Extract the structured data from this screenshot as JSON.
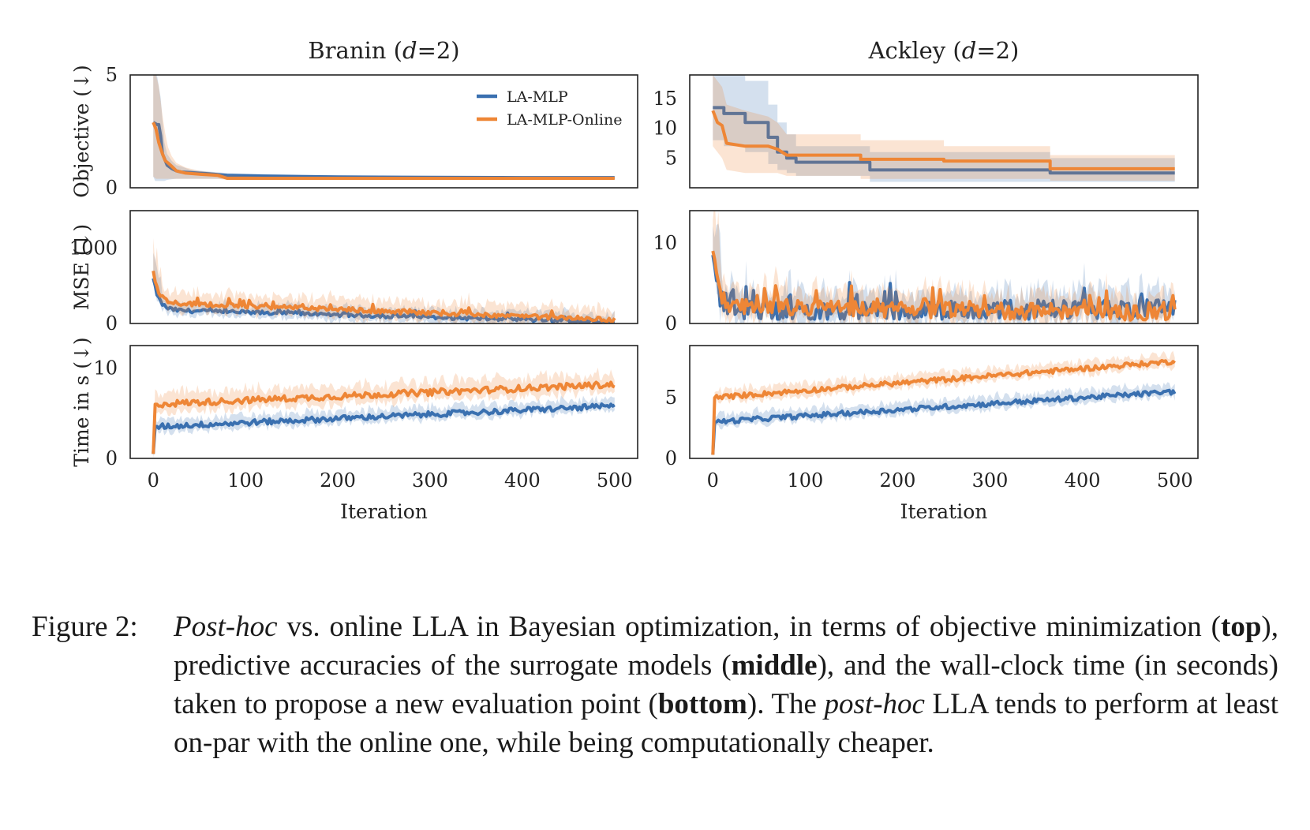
{
  "chart_data": {
    "type": "line",
    "legend": {
      "location": "top-right of first panel",
      "entries": [
        "LA-MLP",
        "LA-MLP-Online"
      ]
    },
    "series_colors": {
      "LA-MLP": "#3a70b0",
      "LA-MLP-Online": "#ee8636"
    },
    "xlabel": "Iteration",
    "xlim": [
      -25,
      525
    ],
    "xticks": [
      "0",
      "100",
      "200",
      "300",
      "400",
      "500"
    ],
    "rows": [
      {
        "ylabel": "Objective (↓)"
      },
      {
        "ylabel": "MSE (↓)"
      },
      {
        "ylabel": "Time in s (↓)"
      }
    ],
    "columns": [
      {
        "title": "Branin (d=2)",
        "title_name": "Branin",
        "title_var": "d",
        "title_eq": "=",
        "title_val": "2"
      },
      {
        "title": "Ackley (d=2)",
        "title_name": "Ackley",
        "title_var": "d",
        "title_eq": "=",
        "title_val": "2"
      }
    ],
    "panels": [
      {
        "id": "branin-objective",
        "row": 0,
        "col": 0,
        "ylim": [
          0,
          5
        ],
        "yticks": [
          "0",
          "5"
        ],
        "series": [
          {
            "name": "LA-MLP",
            "points": [
              [
                0,
                2.9
              ],
              [
                2,
                2.85
              ],
              [
                4,
                2.8
              ],
              [
                6,
                2.8
              ],
              [
                8,
                2.3
              ],
              [
                10,
                1.5
              ],
              [
                12,
                1.3
              ],
              [
                15,
                1.0
              ],
              [
                20,
                0.85
              ],
              [
                25,
                0.75
              ],
              [
                30,
                0.7
              ],
              [
                40,
                0.68
              ],
              [
                60,
                0.62
              ],
              [
                80,
                0.55
              ],
              [
                120,
                0.52
              ],
              [
                200,
                0.48
              ],
              [
                300,
                0.46
              ],
              [
                400,
                0.45
              ],
              [
                500,
                0.45
              ]
            ],
            "band_upper": [
              5.0,
              5.0,
              5.0,
              4.5,
              4.0,
              3.0,
              2.0,
              1.5,
              1.2,
              1.0,
              0.95,
              0.8,
              0.72,
              0.65,
              0.6,
              0.55,
              0.52,
              0.5,
              0.5
            ],
            "band_lower": [
              0.5,
              0.3,
              0.3,
              0.3,
              0.3,
              0.3,
              0.3,
              0.35,
              0.38,
              0.4,
              0.4,
              0.4,
              0.4,
              0.4,
              0.4,
              0.4,
              0.4,
              0.4,
              0.4
            ]
          },
          {
            "name": "LA-MLP-Online",
            "points": [
              [
                0,
                2.9
              ],
              [
                3,
                2.6
              ],
              [
                6,
                2.0
              ],
              [
                10,
                1.5
              ],
              [
                13,
                1.2
              ],
              [
                16,
                1.1
              ],
              [
                20,
                0.95
              ],
              [
                25,
                0.75
              ],
              [
                35,
                0.65
              ],
              [
                50,
                0.6
              ],
              [
                70,
                0.55
              ],
              [
                80,
                0.42
              ],
              [
                120,
                0.42
              ],
              [
                200,
                0.42
              ],
              [
                300,
                0.42
              ],
              [
                400,
                0.42
              ],
              [
                500,
                0.42
              ]
            ],
            "band_upper": [
              5.0,
              5.0,
              4.5,
              3.2,
              2.4,
              1.8,
              1.4,
              1.1,
              0.9,
              0.75,
              0.65,
              0.55,
              0.5,
              0.5,
              0.5,
              0.5,
              0.5
            ],
            "band_lower": [
              0.5,
              0.4,
              0.4,
              0.4,
              0.4,
              0.4,
              0.4,
              0.4,
              0.4,
              0.4,
              0.4,
              0.35,
              0.35,
              0.35,
              0.35,
              0.35,
              0.35
            ]
          }
        ]
      },
      {
        "id": "ackley-objective",
        "row": 0,
        "col": 1,
        "ylim": [
          0,
          19
        ],
        "yticks": [
          "5",
          "10",
          "15"
        ],
        "series": [
          {
            "name": "LA-MLP",
            "points": [
              [
                0,
                13.5
              ],
              [
                12,
                13.5
              ],
              [
                12,
                12.5
              ],
              [
                35,
                12.5
              ],
              [
                35,
                11.0
              ],
              [
                60,
                11.0
              ],
              [
                60,
                8.5
              ],
              [
                70,
                8.5
              ],
              [
                70,
                6.0
              ],
              [
                80,
                6.0
              ],
              [
                80,
                5.0
              ],
              [
                90,
                5.0
              ],
              [
                90,
                4.3
              ],
              [
                170,
                4.3
              ],
              [
                170,
                3.0
              ],
              [
                365,
                3.0
              ],
              [
                365,
                2.5
              ],
              [
                500,
                2.5
              ]
            ],
            "band_upper": [
              19,
              19,
              19,
              19,
              18,
              18,
              14,
              14,
              11,
              11,
              9,
              9,
              7,
              7,
              6,
              6,
              5,
              5
            ],
            "band_lower": [
              8,
              8,
              7,
              7,
              6,
              6,
              4,
              4,
              3,
              3,
              2.5,
              2.5,
              2,
              2,
              1,
              1,
              1,
              1
            ]
          },
          {
            "name": "LA-MLP-Online",
            "points": [
              [
                0,
                13.0
              ],
              [
                5,
                11.0
              ],
              [
                10,
                10.5
              ],
              [
                15,
                7.5
              ],
              [
                35,
                7.0
              ],
              [
                60,
                7.0
              ],
              [
                70,
                6.5
              ],
              [
                80,
                5.5
              ],
              [
                160,
                5.5
              ],
              [
                160,
                4.8
              ],
              [
                250,
                4.8
              ],
              [
                250,
                4.5
              ],
              [
                365,
                4.5
              ],
              [
                365,
                3.2
              ],
              [
                500,
                3.2
              ]
            ],
            "band_upper": [
              19,
              18,
              17,
              14,
              13,
              12,
              11,
              9,
              9,
              8,
              8,
              7,
              7,
              5.5,
              5.5
            ],
            "band_lower": [
              7,
              6,
              5,
              3,
              2.5,
              2.5,
              2.5,
              2,
              2,
              1.5,
              1.5,
              1.5,
              1.5,
              1.2,
              1.2
            ]
          }
        ]
      },
      {
        "id": "branin-mse",
        "row": 1,
        "col": 0,
        "ylim": [
          0,
          1500
        ],
        "yticks": [
          "0",
          "1000"
        ],
        "series": [
          {
            "name": "LA-MLP",
            "start": 600,
            "mid": 180,
            "end": 20,
            "noise": 25,
            "band": 100
          },
          {
            "name": "LA-MLP-Online",
            "start": 700,
            "mid": 280,
            "end": 50,
            "noise": 30,
            "band": 140
          }
        ]
      },
      {
        "id": "ackley-mse",
        "row": 1,
        "col": 1,
        "ylim": [
          0,
          14
        ],
        "yticks": [
          "0",
          "10"
        ],
        "series": [
          {
            "name": "LA-MLP",
            "start": 8.5,
            "mid": 1.5,
            "end": 1.8,
            "noise": 1.2,
            "band": 2.2
          },
          {
            "name": "LA-MLP-Online",
            "start": 9.0,
            "mid": 2.0,
            "end": 1.3,
            "noise": 1.0,
            "band": 2.0
          }
        ]
      },
      {
        "id": "branin-time",
        "row": 2,
        "col": 0,
        "ylim": [
          0,
          12.5
        ],
        "yticks": [
          "0",
          "10"
        ],
        "series": [
          {
            "name": "LA-MLP",
            "start": 0.5,
            "mid": 3.5,
            "end": 5.8,
            "noise": 0.3,
            "band": 0.8
          },
          {
            "name": "LA-MLP-Online",
            "start": 0.5,
            "mid": 6.0,
            "end": 8.2,
            "noise": 0.35,
            "band": 1.2
          }
        ]
      },
      {
        "id": "ackley-time",
        "row": 2,
        "col": 1,
        "ylim": [
          0,
          9.3
        ],
        "yticks": [
          "0",
          "5"
        ],
        "series": [
          {
            "name": "LA-MLP",
            "start": 0.3,
            "mid": 3.0,
            "end": 5.5,
            "noise": 0.2,
            "band": 0.6
          },
          {
            "name": "LA-MLP-Online",
            "start": 0.3,
            "mid": 5.0,
            "end": 8.0,
            "noise": 0.2,
            "band": 0.6
          }
        ]
      }
    ]
  },
  "caption": {
    "label": "Figure 2:",
    "post_hoc_1": "Post-hoc",
    "text_1": " vs. online LLA in Bayesian optimization, in terms of objective minimization (",
    "top": "top",
    "text_2": "), predictive accuracies of the surrogate models (",
    "middle": "middle",
    "text_3": "), and the wall-clock time (in seconds) taken to propose a new evaluation point (",
    "bottom": "bottom",
    "text_4": "). The ",
    "post_hoc_2": "post-hoc",
    "text_5": " LLA tends to perform at least on-par with the online one, while being computationally cheaper."
  }
}
